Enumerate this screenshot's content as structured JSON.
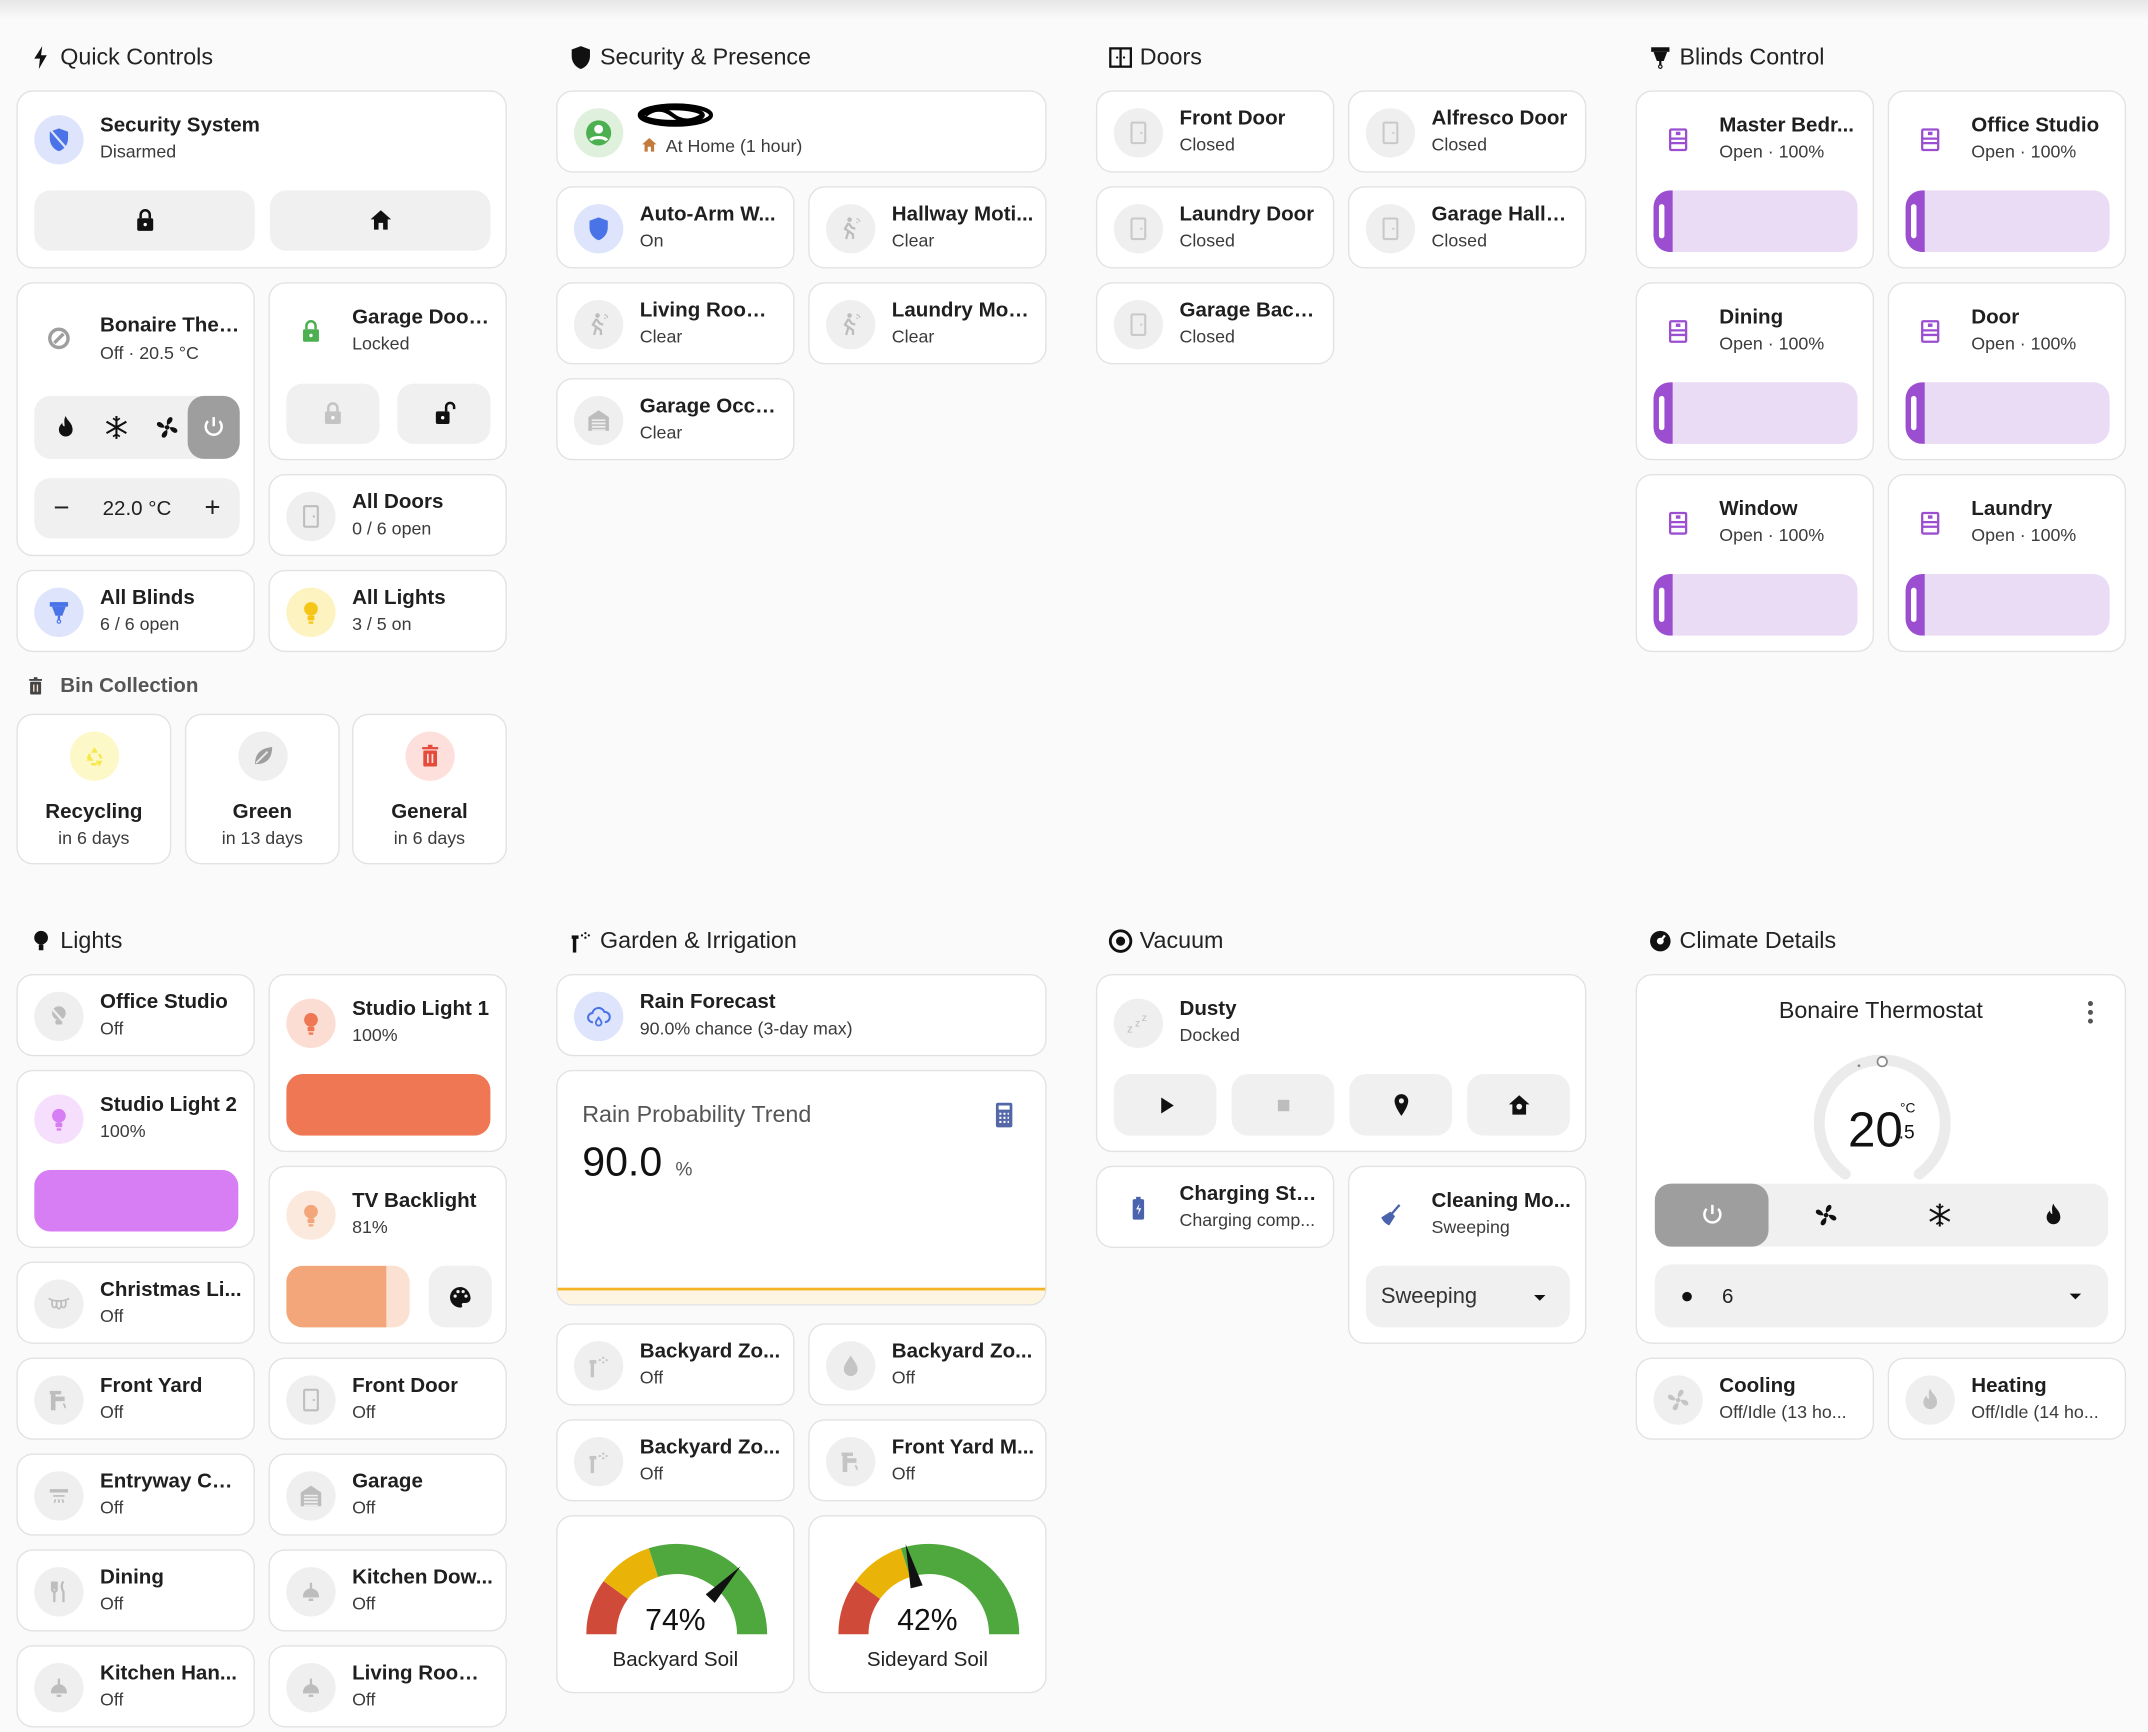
{
  "quick_controls": {
    "title": "Quick Controls",
    "security": {
      "name": "Security System",
      "state": "Disarmed"
    },
    "thermostat": {
      "name": "Bonaire Ther...",
      "state": "Off · 20.5 °C",
      "target": "22.0 °C",
      "minus": "−",
      "plus": "+"
    },
    "garage_door": {
      "name": "Garage Door ...",
      "state": "Locked"
    },
    "all_doors": {
      "name": "All Doors",
      "state": "0 / 6 open"
    },
    "all_blinds": {
      "name": "All Blinds",
      "state": "6 / 6 open"
    },
    "all_lights": {
      "name": "All Lights",
      "state": "3 / 5 on"
    }
  },
  "bin_collection": {
    "title": "Bin Collection",
    "bins": [
      {
        "name": "Recycling",
        "when": "in 6 days",
        "icon": "recycle-icon"
      },
      {
        "name": "Green",
        "when": "in 13 days",
        "icon": "leaf-icon"
      },
      {
        "name": "General",
        "when": "in 6 days",
        "icon": "trash-icon"
      }
    ]
  },
  "security_presence": {
    "title": "Security & Presence",
    "person": {
      "state": "At Home (1 hour)"
    },
    "sensors": [
      {
        "name": "Auto-Arm W...",
        "state": "On"
      },
      {
        "name": "Hallway Moti...",
        "state": "Clear"
      },
      {
        "name": "Living Room ...",
        "state": "Clear"
      },
      {
        "name": "Laundry Moti...",
        "state": "Clear"
      },
      {
        "name": "Garage Occu...",
        "state": "Clear"
      }
    ]
  },
  "doors": {
    "title": "Doors",
    "items": [
      {
        "name": "Front Door",
        "state": "Closed"
      },
      {
        "name": "Alfresco Door",
        "state": "Closed"
      },
      {
        "name": "Laundry Door",
        "state": "Closed"
      },
      {
        "name": "Garage Hallw...",
        "state": "Closed"
      },
      {
        "name": "Garage Back...",
        "state": "Closed"
      }
    ]
  },
  "blinds": {
    "title": "Blinds Control",
    "items": [
      {
        "name": "Master Bedr...",
        "state": "Open · 100%"
      },
      {
        "name": "Office Studio",
        "state": "Open · 100%"
      },
      {
        "name": "Dining",
        "state": "Open · 100%"
      },
      {
        "name": "Door",
        "state": "Open · 100%"
      },
      {
        "name": "Window",
        "state": "Open · 100%"
      },
      {
        "name": "Laundry",
        "state": "Open · 100%"
      }
    ]
  },
  "lights": {
    "title": "Lights",
    "items": [
      {
        "name": "Office Studio",
        "state": "Off"
      },
      {
        "name": "Studio Light 1",
        "state": "100%",
        "brightness": 100,
        "color": "#ef7753"
      },
      {
        "name": "Studio Light 2",
        "state": "100%",
        "brightness": 100,
        "color": "#d77ef5"
      },
      {
        "name": "TV Backlight",
        "state": "81%",
        "brightness": 81,
        "color": "#f2a679"
      },
      {
        "name": "Christmas Li...",
        "state": "Off"
      },
      {
        "name": "Front Yard",
        "state": "Off"
      },
      {
        "name": "Front Door",
        "state": "Off"
      },
      {
        "name": "Entryway Cor...",
        "state": "Off"
      },
      {
        "name": "Garage",
        "state": "Off"
      },
      {
        "name": "Dining",
        "state": "Off"
      },
      {
        "name": "Kitchen Dow...",
        "state": "Off"
      },
      {
        "name": "Kitchen Han...",
        "state": "Off"
      },
      {
        "name": "Living Room ...",
        "state": "Off"
      }
    ]
  },
  "garden": {
    "title": "Garden & Irrigation",
    "rain_forecast": {
      "name": "Rain Forecast",
      "state": "90.0% chance (3-day max)"
    },
    "trend": {
      "title": "Rain Probability Trend",
      "value": "90.0",
      "unit": "%"
    },
    "zones": [
      {
        "name": "Backyard Zo...",
        "state": "Off"
      },
      {
        "name": "Backyard Zo...",
        "state": "Off"
      },
      {
        "name": "Backyard Zo...",
        "state": "Off"
      },
      {
        "name": "Front Yard M...",
        "state": "Off"
      }
    ],
    "gauges": [
      {
        "label": "Backyard Soil",
        "value": 74,
        "display": "74%"
      },
      {
        "label": "Sideyard Soil",
        "value": 42,
        "display": "42%"
      }
    ],
    "gauge_segments": [
      {
        "from": 0,
        "to": 20,
        "color": "#d04a3a"
      },
      {
        "from": 20,
        "to": 40,
        "color": "#eab308"
      },
      {
        "from": 40,
        "to": 100,
        "color": "#4fa83d"
      }
    ]
  },
  "vacuum": {
    "title": "Vacuum",
    "robot": {
      "name": "Dusty",
      "state": "Docked"
    },
    "charging": {
      "name": "Charging Sta...",
      "state": "Charging comp..."
    },
    "cleaning_mode": {
      "name": "Cleaning Mo...",
      "state": "Sweeping",
      "selected": "Sweeping"
    }
  },
  "climate": {
    "title": "Climate Details",
    "thermostat": {
      "name": "Bonaire Thermostat",
      "temp_int": "20",
      "temp_dec": ".5",
      "unit": "°C",
      "fan_value": "6"
    },
    "cooling": {
      "name": "Cooling",
      "state": "Off/Idle (13 ho..."
    },
    "heating": {
      "name": "Heating",
      "state": "Off/Idle (14 ho..."
    }
  },
  "colors": {
    "accent_blue": "#4a73e8",
    "blind_purple": "#9b4fd0",
    "lock_green": "#4caf50",
    "trend_line": "#f5b323"
  }
}
